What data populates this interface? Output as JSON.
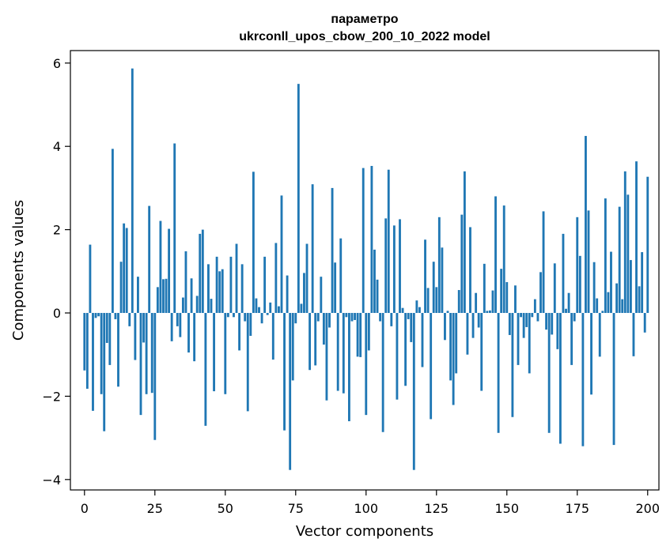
{
  "chart_data": {
    "type": "bar",
    "title": "параметро",
    "subtitle": "ukrconll_upos_cbow_200_10_2022 model",
    "xlabel": "Vector components",
    "ylabel": "Components values",
    "xlim": [
      -5,
      204
    ],
    "ylim": [
      -4.25,
      6.3
    ],
    "xticks": [
      0,
      25,
      50,
      75,
      100,
      125,
      150,
      175,
      200
    ],
    "yticks": [
      -4,
      -2,
      0,
      2,
      4,
      6
    ],
    "ytick_labels": [
      "−4",
      "−2",
      "0",
      "2",
      "4",
      "6"
    ],
    "grid": false,
    "bar_color": "#1f77b4",
    "values": [
      -1.38,
      -1.82,
      1.64,
      -2.35,
      -0.12,
      -0.08,
      -1.95,
      -2.84,
      -0.72,
      -1.25,
      3.94,
      -0.15,
      -1.77,
      1.23,
      2.15,
      2.04,
      -0.32,
      5.87,
      -1.13,
      0.87,
      -2.45,
      -0.71,
      -1.95,
      2.57,
      -1.92,
      -3.05,
      0.62,
      2.21,
      0.81,
      0.82,
      2.02,
      -0.68,
      4.07,
      -0.32,
      -0.58,
      0.37,
      1.48,
      -0.95,
      0.83,
      -1.16,
      0.41,
      1.9,
      2.0,
      -2.71,
      1.17,
      0.34,
      -1.88,
      1.35,
      1.0,
      1.05,
      -1.95,
      -0.1,
      1.35,
      -0.1,
      1.66,
      -0.9,
      1.17,
      -0.2,
      -2.36,
      -0.55,
      3.39,
      0.35,
      0.14,
      -0.25,
      1.35,
      -0.05,
      0.25,
      -1.12,
      1.68,
      0.16,
      2.82,
      -2.82,
      0.9,
      -3.77,
      -1.62,
      -0.25,
      5.5,
      0.22,
      0.96,
      1.66,
      -1.37,
      3.09,
      -1.26,
      -0.2,
      0.87,
      -0.76,
      -2.1,
      -0.35,
      3.0,
      1.21,
      -1.87,
      1.79,
      -1.93,
      -0.1,
      -2.6,
      -0.2,
      -0.17,
      -1.05,
      -1.06,
      3.48,
      -2.45,
      -0.9,
      3.53,
      1.52,
      0.8,
      -0.2,
      -2.86,
      2.27,
      3.44,
      -0.32,
      2.1,
      -2.08,
      2.25,
      0.12,
      -1.75,
      -0.15,
      -0.7,
      -3.77,
      0.3,
      0.14,
      -1.3,
      1.76,
      0.6,
      -2.55,
      1.23,
      0.62,
      2.3,
      1.57,
      -0.65,
      0.05,
      -1.62,
      -2.21,
      -1.45,
      0.55,
      2.36,
      3.4,
      -1.0,
      2.06,
      -0.6,
      0.48,
      -0.35,
      -1.87,
      1.18,
      0.05,
      0.06,
      0.54,
      2.8,
      -2.88,
      1.06,
      2.58,
      0.74,
      -0.53,
      -2.5,
      0.66,
      -1.25,
      -0.1,
      -0.6,
      -0.34,
      -1.45,
      -0.1,
      0.33,
      -0.2,
      0.98,
      2.44,
      -0.4,
      -2.88,
      -0.52,
      1.19,
      -0.87,
      -3.14,
      1.9,
      0.1,
      0.48,
      -1.25,
      -0.2,
      2.3,
      1.37,
      -3.2,
      4.25,
      2.46,
      -1.96,
      1.22,
      0.35,
      -1.05,
      0.05,
      2.75,
      0.5,
      1.47,
      -3.17,
      0.71,
      2.55,
      0.33,
      3.4,
      2.84,
      1.27,
      -1.04,
      3.64,
      0.64,
      1.46,
      -0.47,
      3.27
    ]
  }
}
